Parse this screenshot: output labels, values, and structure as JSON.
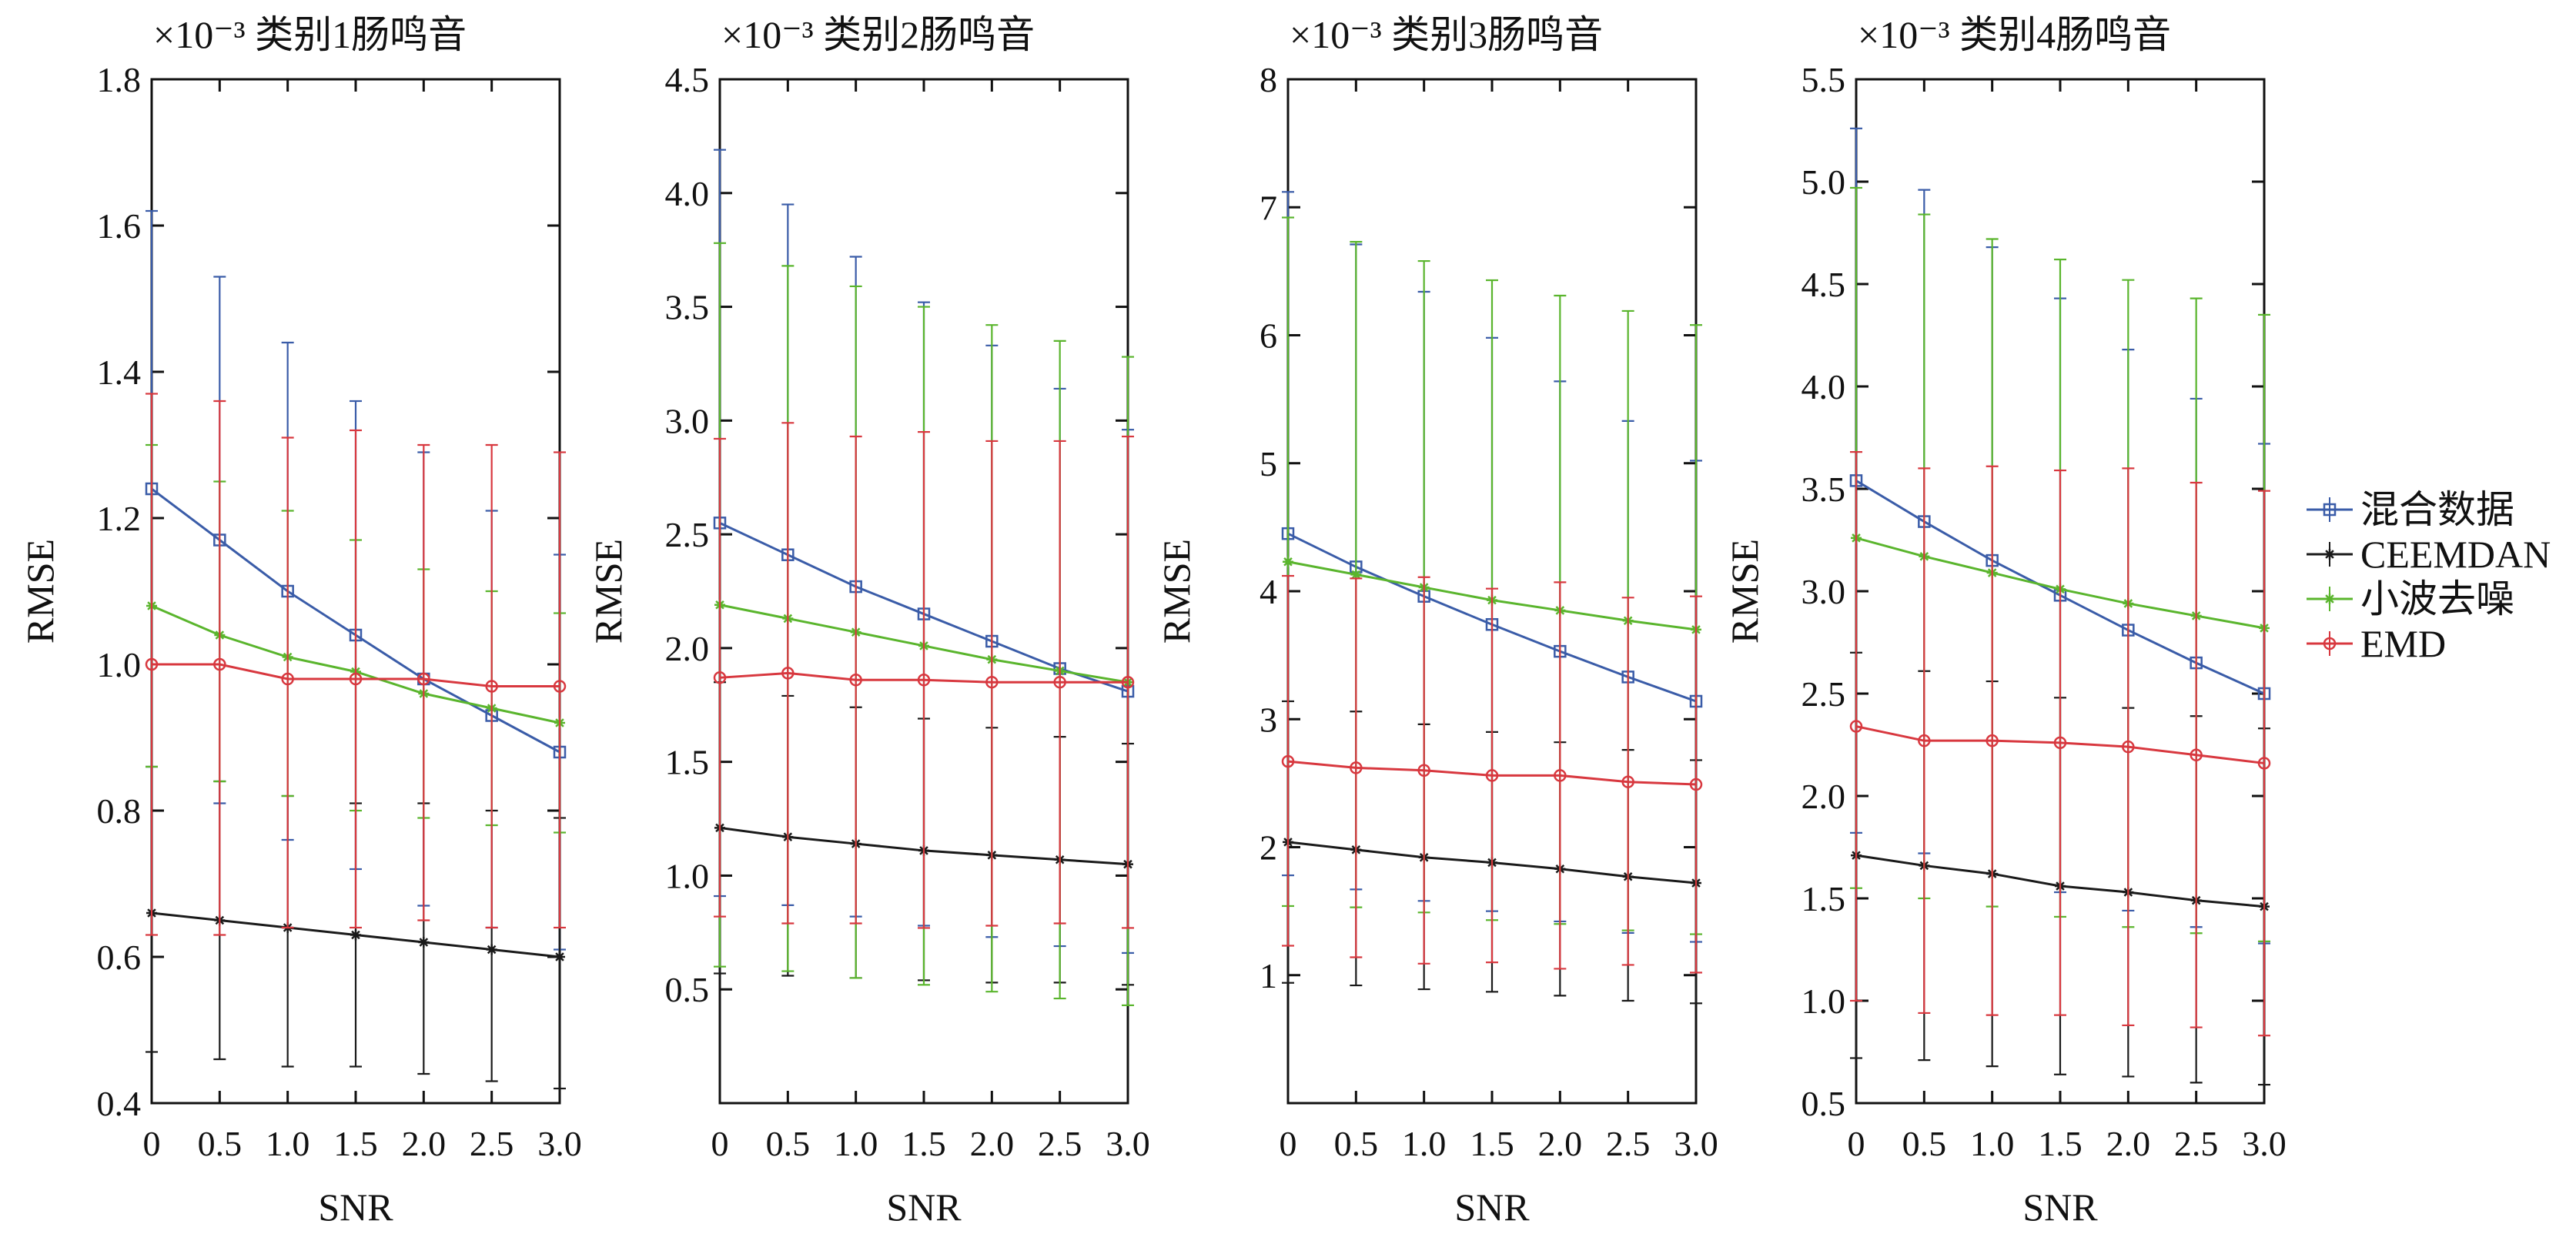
{
  "legend": {
    "placement": "right",
    "entries": [
      {
        "name": "混合数据",
        "color": "#3a5ca8",
        "marker": "square"
      },
      {
        "name": "CEEMDAN",
        "color": "#1a1a1a",
        "marker": "star"
      },
      {
        "name": "小波去噪",
        "color": "#5ab52d",
        "marker": "star"
      },
      {
        "name": "EMD",
        "color": "#d8383f",
        "marker": "circle"
      }
    ]
  },
  "chart_data": [
    {
      "type": "line",
      "title": "类别1肠鸣音",
      "scale_note": "×10⁻³",
      "xlabel": "SNR",
      "ylabel": "RMSE",
      "x": [
        0,
        0.5,
        1.0,
        1.5,
        2.0,
        2.5,
        3.0
      ],
      "x_tick_labels": [
        "0",
        "0.5",
        "1.0",
        "1.5",
        "2.0",
        "2.5",
        "3.0"
      ],
      "xlim": [
        0,
        3.0
      ],
      "ylim": [
        0.4,
        1.8
      ],
      "y_ticks": [
        0.4,
        0.6,
        0.8,
        1.0,
        1.2,
        1.4,
        1.6,
        1.8
      ],
      "y_tick_labels": [
        "0.4",
        "0.6",
        "0.8",
        "1.0",
        "1.2",
        "1.4",
        "1.6",
        "1.8"
      ],
      "grid": false,
      "series": [
        {
          "name": "混合数据",
          "values": [
            1.24,
            1.17,
            1.1,
            1.04,
            0.98,
            0.93,
            0.88
          ],
          "upper": [
            1.62,
            1.53,
            1.44,
            1.36,
            1.29,
            1.21,
            1.15
          ],
          "lower": [
            0.86,
            0.81,
            0.76,
            0.72,
            0.67,
            0.64,
            0.61
          ]
        },
        {
          "name": "CEEMDAN",
          "values": [
            0.66,
            0.65,
            0.64,
            0.63,
            0.62,
            0.61,
            0.6
          ],
          "upper": [
            0.86,
            0.84,
            0.82,
            0.81,
            0.81,
            0.8,
            0.79
          ],
          "lower": [
            0.47,
            0.46,
            0.45,
            0.45,
            0.44,
            0.43,
            0.42
          ]
        },
        {
          "name": "小波去噪",
          "values": [
            1.08,
            1.04,
            1.01,
            0.99,
            0.96,
            0.94,
            0.92
          ],
          "upper": [
            1.3,
            1.25,
            1.21,
            1.17,
            1.13,
            1.1,
            1.07
          ],
          "lower": [
            0.86,
            0.84,
            0.82,
            0.8,
            0.79,
            0.78,
            0.77
          ]
        },
        {
          "name": "EMD",
          "values": [
            1.0,
            1.0,
            0.98,
            0.98,
            0.98,
            0.97,
            0.97
          ],
          "upper": [
            1.37,
            1.36,
            1.31,
            1.32,
            1.3,
            1.3,
            1.29
          ],
          "lower": [
            0.63,
            0.63,
            0.64,
            0.64,
            0.65,
            0.64,
            0.64
          ]
        }
      ]
    },
    {
      "type": "line",
      "title": "类别2肠鸣音",
      "scale_note": "×10⁻³",
      "xlabel": "SNR",
      "ylabel": "RMSE",
      "x": [
        0,
        0.5,
        1.0,
        1.5,
        2.0,
        2.5,
        3.0
      ],
      "x_tick_labels": [
        "0",
        "0.5",
        "1.0",
        "1.5",
        "2.0",
        "2.5",
        "3.0"
      ],
      "xlim": [
        0,
        3.0
      ],
      "ylim": [
        0,
        4.5
      ],
      "y_ticks": [
        0.5,
        1.0,
        1.5,
        2.0,
        2.5,
        3.0,
        3.5,
        4.0,
        4.5
      ],
      "y_tick_labels": [
        "0.5",
        "1.0",
        "1.5",
        "2.0",
        "2.5",
        "3.0",
        "3.5",
        "4.0",
        "4.5"
      ],
      "grid": false,
      "series": [
        {
          "name": "混合数据",
          "values": [
            2.55,
            2.41,
            2.27,
            2.15,
            2.03,
            1.91,
            1.81
          ],
          "upper": [
            4.19,
            3.95,
            3.72,
            3.52,
            3.33,
            3.14,
            2.96
          ],
          "lower": [
            0.91,
            0.87,
            0.82,
            0.78,
            0.73,
            0.69,
            0.66
          ]
        },
        {
          "name": "CEEMDAN",
          "values": [
            1.21,
            1.17,
            1.14,
            1.11,
            1.09,
            1.07,
            1.05
          ],
          "upper": [
            1.85,
            1.79,
            1.74,
            1.69,
            1.65,
            1.61,
            1.58
          ],
          "lower": [
            0.57,
            0.56,
            0.55,
            0.54,
            0.53,
            0.53,
            0.52
          ]
        },
        {
          "name": "小波去噪",
          "values": [
            2.19,
            2.13,
            2.07,
            2.01,
            1.95,
            1.9,
            1.85
          ],
          "upper": [
            3.78,
            3.68,
            3.59,
            3.5,
            3.42,
            3.35,
            3.28
          ],
          "lower": [
            0.6,
            0.58,
            0.55,
            0.52,
            0.49,
            0.46,
            0.43
          ]
        },
        {
          "name": "EMD",
          "values": [
            1.87,
            1.89,
            1.86,
            1.86,
            1.85,
            1.85,
            1.85
          ],
          "upper": [
            2.92,
            2.99,
            2.93,
            2.95,
            2.91,
            2.91,
            2.93
          ],
          "lower": [
            0.82,
            0.79,
            0.79,
            0.77,
            0.78,
            0.79,
            0.77
          ]
        }
      ]
    },
    {
      "type": "line",
      "title": "类别3肠鸣音",
      "scale_note": "×10⁻³",
      "xlabel": "SNR",
      "ylabel": "RMSE",
      "x": [
        0,
        0.5,
        1.0,
        1.5,
        2.0,
        2.5,
        3.0
      ],
      "x_tick_labels": [
        "0",
        "0.5",
        "1.0",
        "1.5",
        "2.0",
        "2.5",
        "3.0"
      ],
      "xlim": [
        0,
        3.0
      ],
      "ylim": [
        0,
        8
      ],
      "y_ticks": [
        1,
        2,
        3,
        4,
        5,
        6,
        7,
        8
      ],
      "y_tick_labels": [
        "1",
        "2",
        "3",
        "4",
        "5",
        "6",
        "7",
        "8"
      ],
      "grid": false,
      "series": [
        {
          "name": "混合数据",
          "values": [
            4.45,
            4.19,
            3.96,
            3.74,
            3.53,
            3.33,
            3.14
          ],
          "upper": [
            7.12,
            6.71,
            6.34,
            5.98,
            5.64,
            5.33,
            5.02
          ],
          "lower": [
            1.78,
            1.67,
            1.58,
            1.5,
            1.42,
            1.33,
            1.26
          ]
        },
        {
          "name": "CEEMDAN",
          "values": [
            2.04,
            1.98,
            1.92,
            1.88,
            1.83,
            1.77,
            1.72
          ],
          "upper": [
            3.14,
            3.06,
            2.96,
            2.9,
            2.82,
            2.76,
            2.68
          ],
          "lower": [
            0.94,
            0.92,
            0.89,
            0.87,
            0.84,
            0.8,
            0.78
          ]
        },
        {
          "name": "小波去噪",
          "values": [
            4.23,
            4.13,
            4.03,
            3.93,
            3.85,
            3.77,
            3.7
          ],
          "upper": [
            6.92,
            6.73,
            6.58,
            6.43,
            6.31,
            6.19,
            6.08
          ],
          "lower": [
            1.54,
            1.53,
            1.49,
            1.43,
            1.4,
            1.35,
            1.32
          ]
        },
        {
          "name": "EMD",
          "values": [
            2.67,
            2.62,
            2.6,
            2.56,
            2.56,
            2.51,
            2.49
          ],
          "upper": [
            4.12,
            4.1,
            4.11,
            4.02,
            4.07,
            3.95,
            3.96
          ],
          "lower": [
            1.23,
            1.14,
            1.09,
            1.1,
            1.05,
            1.08,
            1.02
          ]
        }
      ]
    },
    {
      "type": "line",
      "title": "类别4肠鸣音",
      "scale_note": "×10⁻³",
      "xlabel": "SNR",
      "ylabel": "RMSE",
      "x": [
        0,
        0.5,
        1.0,
        1.5,
        2.0,
        2.5,
        3.0
      ],
      "x_tick_labels": [
        "0",
        "0.5",
        "1.0",
        "1.5",
        "2.0",
        "2.5",
        "3.0"
      ],
      "xlim": [
        0,
        3.0
      ],
      "ylim": [
        0.5,
        5.5
      ],
      "y_ticks": [
        0.5,
        1.0,
        1.5,
        2.0,
        2.5,
        3.0,
        3.5,
        4.0,
        4.5,
        5.0,
        5.5
      ],
      "y_tick_labels": [
        "0.5",
        "1.0",
        "1.5",
        "2.0",
        "2.5",
        "3.0",
        "3.5",
        "4.0",
        "4.5",
        "5.0",
        "5.5"
      ],
      "grid": false,
      "series": [
        {
          "name": "混合数据",
          "values": [
            3.54,
            3.34,
            3.15,
            2.98,
            2.81,
            2.65,
            2.5
          ],
          "upper": [
            5.26,
            4.96,
            4.68,
            4.43,
            4.18,
            3.94,
            3.72
          ],
          "lower": [
            1.82,
            1.72,
            1.62,
            1.53,
            1.44,
            1.36,
            1.28
          ]
        },
        {
          "name": "CEEMDAN",
          "values": [
            1.71,
            1.66,
            1.62,
            1.56,
            1.53,
            1.49,
            1.46
          ],
          "upper": [
            2.7,
            2.61,
            2.56,
            2.48,
            2.43,
            2.39,
            2.33
          ],
          "lower": [
            0.72,
            0.71,
            0.68,
            0.64,
            0.63,
            0.6,
            0.59
          ]
        },
        {
          "name": "小波去噪",
          "values": [
            3.26,
            3.17,
            3.09,
            3.01,
            2.94,
            2.88,
            2.82
          ],
          "upper": [
            4.97,
            4.84,
            4.72,
            4.62,
            4.52,
            4.43,
            4.35
          ],
          "lower": [
            1.55,
            1.5,
            1.46,
            1.41,
            1.36,
            1.33,
            1.29
          ]
        },
        {
          "name": "EMD",
          "values": [
            2.34,
            2.27,
            2.27,
            2.26,
            2.24,
            2.2,
            2.16
          ],
          "upper": [
            3.68,
            3.6,
            3.61,
            3.59,
            3.6,
            3.53,
            3.49
          ],
          "lower": [
            1.0,
            0.94,
            0.93,
            0.93,
            0.88,
            0.87,
            0.83
          ]
        }
      ]
    }
  ]
}
